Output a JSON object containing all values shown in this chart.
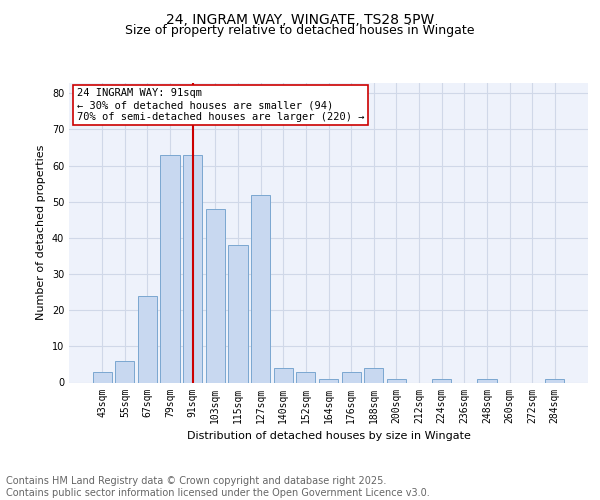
{
  "title": "24, INGRAM WAY, WINGATE, TS28 5PW",
  "subtitle": "Size of property relative to detached houses in Wingate",
  "xlabel": "Distribution of detached houses by size in Wingate",
  "ylabel": "Number of detached properties",
  "categories": [
    "43sqm",
    "55sqm",
    "67sqm",
    "79sqm",
    "91sqm",
    "103sqm",
    "115sqm",
    "127sqm",
    "140sqm",
    "152sqm",
    "164sqm",
    "176sqm",
    "188sqm",
    "200sqm",
    "212sqm",
    "224sqm",
    "236sqm",
    "248sqm",
    "260sqm",
    "272sqm",
    "284sqm"
  ],
  "values": [
    3,
    6,
    24,
    63,
    63,
    48,
    38,
    52,
    4,
    3,
    1,
    3,
    4,
    1,
    0,
    1,
    0,
    1,
    0,
    0,
    1
  ],
  "bar_color": "#c8d8f0",
  "bar_edge_color": "#7ba7d0",
  "grid_color": "#d0d8e8",
  "background_color": "#eef2fb",
  "vline_x_index": 4,
  "vline_color": "#cc0000",
  "annotation_text": "24 INGRAM WAY: 91sqm\n← 30% of detached houses are smaller (94)\n70% of semi-detached houses are larger (220) →",
  "annotation_box_color": "#ffffff",
  "annotation_box_edge_color": "#cc0000",
  "ylim": [
    0,
    83
  ],
  "yticks": [
    0,
    10,
    20,
    30,
    40,
    50,
    60,
    70,
    80
  ],
  "footer_text": "Contains HM Land Registry data © Crown copyright and database right 2025.\nContains public sector information licensed under the Open Government Licence v3.0.",
  "title_fontsize": 10,
  "subtitle_fontsize": 9,
  "footer_fontsize": 7,
  "axis_label_fontsize": 8,
  "tick_fontsize": 7,
  "annotation_fontsize": 7.5
}
